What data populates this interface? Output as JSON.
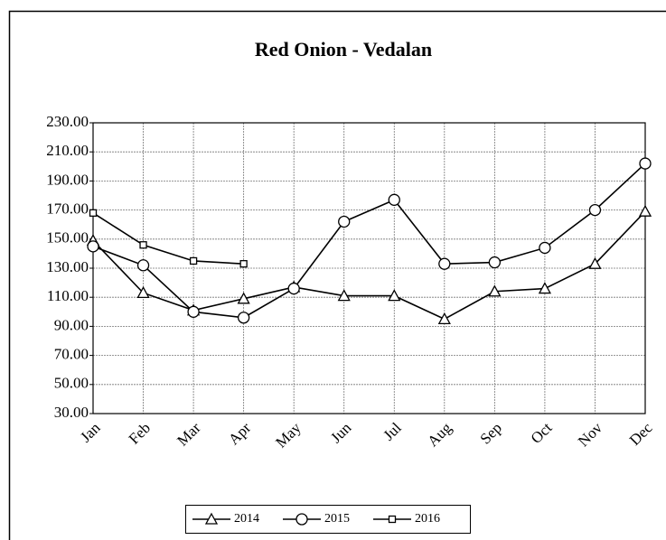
{
  "chart_data": {
    "type": "line",
    "title": "Red Onion - Vedalan",
    "categories": [
      "Jan",
      "Feb",
      "Mar",
      "Apr",
      "May",
      "Jun",
      "Jul",
      "Aug",
      "Sep",
      "Oct",
      "Nov",
      "Dec"
    ],
    "series": [
      {
        "name": "2014",
        "color": "#000000",
        "marker": "triangle",
        "values": [
          149,
          113,
          101,
          109,
          117,
          111,
          111,
          95,
          114,
          116,
          133,
          169
        ]
      },
      {
        "name": "2015",
        "color": "#000000",
        "marker": "circle",
        "values": [
          145,
          132,
          100,
          96,
          116,
          162,
          177,
          133,
          134,
          144,
          170,
          202
        ]
      },
      {
        "name": "2016",
        "color": "#000000",
        "marker": "square",
        "values": [
          168,
          146,
          135,
          133,
          null,
          null,
          null,
          null,
          null,
          null,
          null,
          null
        ]
      }
    ],
    "ylim": [
      30,
      230
    ],
    "yticks": [
      {
        "value": 30,
        "label": "30.00"
      },
      {
        "value": 50,
        "label": "50.00"
      },
      {
        "value": 70,
        "label": "70.00"
      },
      {
        "value": 90,
        "label": "90.00"
      },
      {
        "value": 110,
        "label": "110.00"
      },
      {
        "value": 130,
        "label": "130.00"
      },
      {
        "value": 150,
        "label": "150.00"
      },
      {
        "value": 170,
        "label": "170.00"
      },
      {
        "value": 190,
        "label": "190.00"
      },
      {
        "value": 210,
        "label": "210.00"
      },
      {
        "value": 230,
        "label": "230.00"
      }
    ],
    "grid": true,
    "legend": "bottom"
  }
}
